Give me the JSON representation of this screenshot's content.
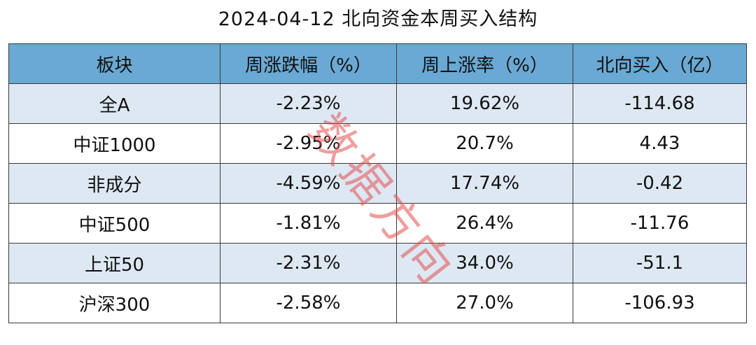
{
  "title": "2024-04-12 北向资金本周买入结构",
  "table": {
    "headers": [
      "板块",
      "周涨跌幅（%）",
      "周上涨率（%）",
      "北向买入（亿）"
    ],
    "rows": [
      [
        "全A",
        "-2.23%",
        "19.62%",
        "-114.68"
      ],
      [
        "中证1000",
        "-2.95%",
        "20.7%",
        "4.43"
      ],
      [
        "非成分",
        "-4.59%",
        "17.74%",
        "-0.42"
      ],
      [
        "中证500",
        "-1.81%",
        "26.4%",
        "-11.76"
      ],
      [
        "上证50",
        "-2.31%",
        "34.0%",
        "-51.1"
      ],
      [
        "沪深300",
        "-2.58%",
        "27.0%",
        "-106.93"
      ]
    ]
  },
  "watermark": "数据方向",
  "colors": {
    "header_bg": "#6aa9d3",
    "stripe_bg": "#dde8f3",
    "watermark": "#e24e4e"
  }
}
